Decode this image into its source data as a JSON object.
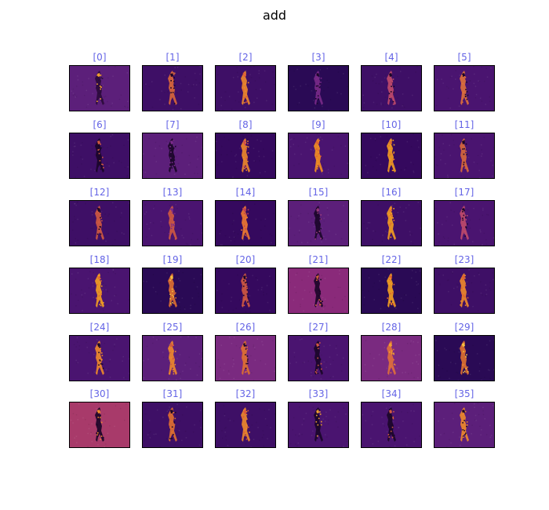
{
  "figure": {
    "title": "add"
  },
  "chart_data": {
    "type": "heatmap",
    "title": "add",
    "colormap": "inferno",
    "label_color": "#6464e6",
    "panels": [
      {
        "label": "[0]",
        "bg": "#5c1f7a",
        "fg": "#2a0a3a",
        "hi": "#f0a030"
      },
      {
        "label": "[1]",
        "bg": "#3e0f66",
        "fg": "#d9683a",
        "hi": "#1a0628"
      },
      {
        "label": "[2]",
        "bg": "#3e0f66",
        "fg": "#f08a2a",
        "hi": "#e05838"
      },
      {
        "label": "[3]",
        "bg": "#2a0a55",
        "fg": "#7a2a8a",
        "hi": "#1a0628"
      },
      {
        "label": "[4]",
        "bg": "#3e0f66",
        "fg": "#c04a6a",
        "hi": "#1a0628"
      },
      {
        "label": "[5]",
        "bg": "#4a1470",
        "fg": "#e0703a",
        "hi": "#1a0628"
      },
      {
        "label": "[6]",
        "bg": "#3e0f66",
        "fg": "#1a0628",
        "hi": "#d05a40"
      },
      {
        "label": "[7]",
        "bg": "#5c1f7a",
        "fg": "#1a0628",
        "hi": "#7a2a8a"
      },
      {
        "label": "[8]",
        "bg": "#35095e",
        "fg": "#f08a2a",
        "hi": "#d04a50"
      },
      {
        "label": "[9]",
        "bg": "#4a1470",
        "fg": "#f59020",
        "hi": "#e06030"
      },
      {
        "label": "[10]",
        "bg": "#35095e",
        "fg": "#f5a020",
        "hi": "#e07030"
      },
      {
        "label": "[11]",
        "bg": "#4a1470",
        "fg": "#d9683a",
        "hi": "#1a0628"
      },
      {
        "label": "[12]",
        "bg": "#3e0f66",
        "fg": "#d05a40",
        "hi": "#1a0628"
      },
      {
        "label": "[13]",
        "bg": "#4a1470",
        "fg": "#d05a40",
        "hi": "#7a2a8a"
      },
      {
        "label": "[14]",
        "bg": "#35095e",
        "fg": "#f07a30",
        "hi": "#c04050"
      },
      {
        "label": "[15]",
        "bg": "#5c1f7a",
        "fg": "#1a0628",
        "hi": "#9a3a7a"
      },
      {
        "label": "[16]",
        "bg": "#3e0f66",
        "fg": "#f5a020",
        "hi": "#e07030"
      },
      {
        "label": "[17]",
        "bg": "#4a1470",
        "fg": "#c04a6a",
        "hi": "#1a0628"
      },
      {
        "label": "[18]",
        "bg": "#4a1470",
        "fg": "#f5a020",
        "hi": "#e07030"
      },
      {
        "label": "[19]",
        "bg": "#2a0a55",
        "fg": "#e07030",
        "hi": "#f5c040"
      },
      {
        "label": "[20]",
        "bg": "#35095e",
        "fg": "#d05a40",
        "hi": "#1a0628"
      },
      {
        "label": "[21]",
        "bg": "#8a2a7a",
        "fg": "#1a0628",
        "hi": "#d9683a"
      },
      {
        "label": "[22]",
        "bg": "#2a0a55",
        "fg": "#f5a020",
        "hi": "#e06030"
      },
      {
        "label": "[23]",
        "bg": "#3e0f66",
        "fg": "#f08a2a",
        "hi": "#e06030"
      },
      {
        "label": "[24]",
        "bg": "#4a1470",
        "fg": "#f08a2a",
        "hi": "#1a0628"
      },
      {
        "label": "[25]",
        "bg": "#5c1f7a",
        "fg": "#f08a2a",
        "hi": "#d05a40"
      },
      {
        "label": "[26]",
        "bg": "#7a2a80",
        "fg": "#e07030",
        "hi": "#1a0628"
      },
      {
        "label": "[27]",
        "bg": "#4a1470",
        "fg": "#1a0628",
        "hi": "#d05a40"
      },
      {
        "label": "[28]",
        "bg": "#7a2a80",
        "fg": "#e0703a",
        "hi": "#f0a030"
      },
      {
        "label": "[29]",
        "bg": "#2a0a55",
        "fg": "#e07030",
        "hi": "#f5c040"
      },
      {
        "label": "[30]",
        "bg": "#a83a6a",
        "fg": "#1a0628",
        "hi": "#f08a2a"
      },
      {
        "label": "[31]",
        "bg": "#3e0f66",
        "fg": "#e07030",
        "hi": "#1a0628"
      },
      {
        "label": "[32]",
        "bg": "#3e0f66",
        "fg": "#f08a2a",
        "hi": "#e05838"
      },
      {
        "label": "[33]",
        "bg": "#4a1470",
        "fg": "#1a0628",
        "hi": "#f0a030"
      },
      {
        "label": "[34]",
        "bg": "#4a1470",
        "fg": "#1a0628",
        "hi": "#d05a40"
      },
      {
        "label": "[35]",
        "bg": "#5c1f7a",
        "fg": "#f08a2a",
        "hi": "#1a0628"
      }
    ]
  }
}
